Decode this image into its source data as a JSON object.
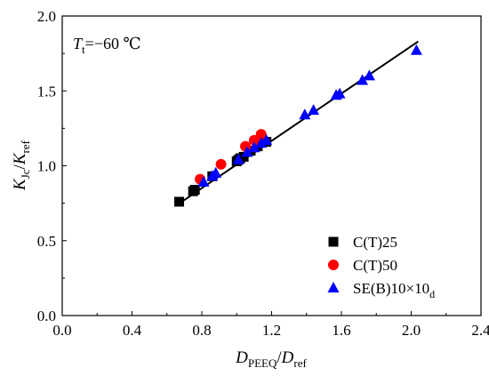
{
  "chart_data": {
    "type": "scatter",
    "xlim": [
      0.0,
      2.4
    ],
    "ylim": [
      0.0,
      2.0
    ],
    "xticks": [
      "0.0",
      "0.4",
      "0.8",
      "1.2",
      "1.6",
      "2.0",
      "2.4"
    ],
    "yticks": [
      "0.0",
      "0.5",
      "1.0",
      "1.5",
      "2.0"
    ],
    "xlabel": {
      "main": "D",
      "sub1": "PEEQ",
      "slash": "/",
      "main2": "D",
      "sub2": "ref"
    },
    "ylabel": {
      "main": "K",
      "sub1": "Jc",
      "slash": "/",
      "main2": "K",
      "sub2": "ref"
    },
    "annotation": {
      "main": "T",
      "sub": "t",
      "rest": "=−60 ℃"
    },
    "grid": false,
    "legend_position": "bottom-right",
    "series": [
      {
        "name": "C(T)25",
        "marker": "square",
        "color": "#000000",
        "points": [
          [
            0.67,
            0.76
          ],
          [
            0.75,
            0.83
          ],
          [
            0.76,
            0.84
          ],
          [
            0.86,
            0.93
          ],
          [
            1.0,
            1.03
          ],
          [
            1.01,
            1.04
          ],
          [
            1.02,
            1.05
          ],
          [
            1.04,
            1.06
          ],
          [
            1.08,
            1.1
          ],
          [
            1.12,
            1.13
          ],
          [
            1.17,
            1.16
          ]
        ]
      },
      {
        "name": "C(T)50",
        "marker": "circle",
        "color": "#ff0000",
        "points": [
          [
            0.79,
            0.91
          ],
          [
            0.91,
            1.01
          ],
          [
            1.05,
            1.13
          ],
          [
            1.1,
            1.17
          ],
          [
            1.14,
            1.21
          ]
        ]
      },
      {
        "name": "SE(B)10×10",
        "name_sub": "d",
        "marker": "triangle",
        "color": "#0000ff",
        "points": [
          [
            0.81,
            0.89
          ],
          [
            0.86,
            0.93
          ],
          [
            0.88,
            0.95
          ],
          [
            1.01,
            1.04
          ],
          [
            1.06,
            1.09
          ],
          [
            1.1,
            1.12
          ],
          [
            1.14,
            1.15
          ],
          [
            1.17,
            1.17
          ],
          [
            1.39,
            1.34
          ],
          [
            1.44,
            1.37
          ],
          [
            1.57,
            1.47
          ],
          [
            1.59,
            1.48
          ],
          [
            1.72,
            1.57
          ],
          [
            1.76,
            1.6
          ],
          [
            2.03,
            1.77
          ]
        ]
      }
    ],
    "fit_line": {
      "x": [
        0.66,
        2.04
      ],
      "y": [
        0.74,
        1.83
      ],
      "color": "#000000"
    }
  }
}
